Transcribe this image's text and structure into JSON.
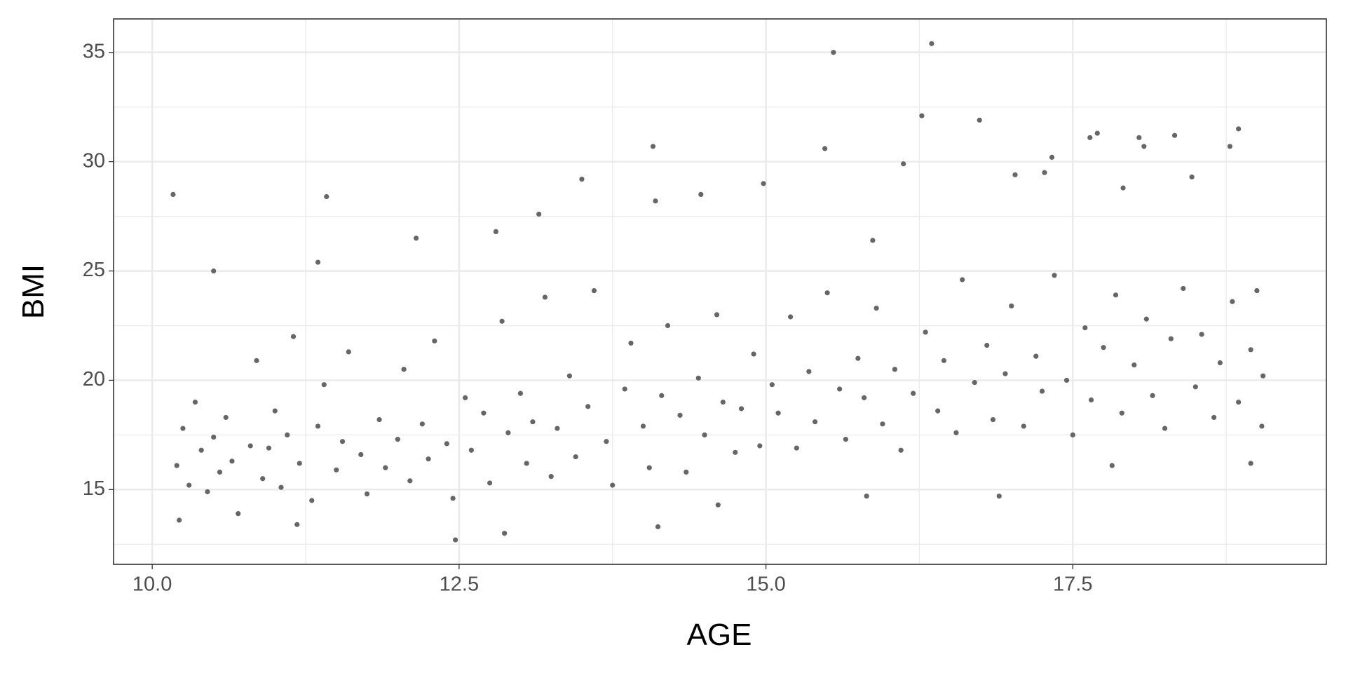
{
  "chart_data": {
    "type": "scatter",
    "x_label": "AGE",
    "y_label": "BMI",
    "xlim": [
      9.685,
      19.566
    ],
    "ylim": [
      11.58,
      36.53
    ],
    "xticks": [
      {
        "value": 10,
        "label": "10.0"
      },
      12.5,
      {
        "value": 15,
        "label": "15.0"
      },
      17.5
    ],
    "yticks": [
      15,
      20,
      25,
      30,
      35
    ],
    "x_minor_grid": [
      11.25,
      13.75,
      16.25,
      18.75
    ],
    "y_minor_grid": [
      12.5,
      17.5,
      22.5,
      27.5,
      32.5
    ],
    "grid": true,
    "color": "#666666",
    "x": [
      10.17,
      11.42,
      12.47,
      12.87,
      13.5,
      14.08,
      15.55,
      15.48,
      16.35,
      16.27,
      16.74,
      16.12,
      14.98,
      17.7,
      17.64,
      18.04,
      18.08,
      18.33,
      18.85,
      18.78,
      17.33,
      15.82,
      16.9,
      14.12,
      18.95,
      17.82,
      10.5,
      11.35,
      12.15,
      12.8,
      13.15,
      14.47,
      14.1,
      15.87,
      17.03,
      17.27,
      18.47,
      17.91,
      14.61,
      10.22,
      11.18,
      10.2,
      10.25,
      10.3,
      10.35,
      10.4,
      10.45,
      10.5,
      10.55,
      10.6,
      10.65,
      10.7,
      10.8,
      10.85,
      10.9,
      10.95,
      11.0,
      11.05,
      11.1,
      11.15,
      11.2,
      11.3,
      11.35,
      11.4,
      11.5,
      11.55,
      11.6,
      11.7,
      11.75,
      11.85,
      11.9,
      12.0,
      12.05,
      12.1,
      12.2,
      12.25,
      12.3,
      12.4,
      12.45,
      12.55,
      12.6,
      12.7,
      12.75,
      12.85,
      12.9,
      13.0,
      13.05,
      13.1,
      13.2,
      13.25,
      13.3,
      13.4,
      13.45,
      13.55,
      13.6,
      13.7,
      13.75,
      13.85,
      13.9,
      14.0,
      14.05,
      14.15,
      14.2,
      14.3,
      14.35,
      14.45,
      14.5,
      14.6,
      14.65,
      14.75,
      14.8,
      14.9,
      14.95,
      15.05,
      15.1,
      15.2,
      15.25,
      15.35,
      15.4,
      15.5,
      15.6,
      15.65,
      15.75,
      15.8,
      15.9,
      15.95,
      16.05,
      16.1,
      16.2,
      16.3,
      16.4,
      16.45,
      16.55,
      16.6,
      16.7,
      16.8,
      16.85,
      16.95,
      17.0,
      17.1,
      17.2,
      17.25,
      17.35,
      17.45,
      17.5,
      17.6,
      17.65,
      17.75,
      17.85,
      17.9,
      18.0,
      18.1,
      18.15,
      18.25,
      18.3,
      18.4,
      18.5,
      18.55,
      18.65,
      18.7,
      18.8,
      18.85,
      18.95,
      19.0,
      19.05,
      19.04
    ],
    "y": [
      28.5,
      28.4,
      12.7,
      13.0,
      29.2,
      30.7,
      35.0,
      30.6,
      35.4,
      32.1,
      31.9,
      29.9,
      29.0,
      31.3,
      31.1,
      31.1,
      30.7,
      31.2,
      31.5,
      30.7,
      30.2,
      14.7,
      14.7,
      13.3,
      16.2,
      16.1,
      25.0,
      25.4,
      26.5,
      26.8,
      27.6,
      28.5,
      28.2,
      26.4,
      29.4,
      29.5,
      29.3,
      28.8,
      14.3,
      13.6,
      13.4,
      16.1,
      17.8,
      15.2,
      19.0,
      16.8,
      14.9,
      17.4,
      15.8,
      18.3,
      16.3,
      13.9,
      17.0,
      20.9,
      15.5,
      16.9,
      18.6,
      15.1,
      17.5,
      22.0,
      16.2,
      14.5,
      17.9,
      19.8,
      15.9,
      17.2,
      21.3,
      16.6,
      14.8,
      18.2,
      16.0,
      17.3,
      20.5,
      15.4,
      18.0,
      16.4,
      21.8,
      17.1,
      14.6,
      19.2,
      16.8,
      18.5,
      15.3,
      22.7,
      17.6,
      19.4,
      16.2,
      18.1,
      23.8,
      15.6,
      17.8,
      20.2,
      16.5,
      18.8,
      24.1,
      17.2,
      15.2,
      19.6,
      21.7,
      17.9,
      16.0,
      19.3,
      22.5,
      18.4,
      15.8,
      20.1,
      17.5,
      23.0,
      19.0,
      16.7,
      18.7,
      21.2,
      17.0,
      19.8,
      18.5,
      22.9,
      16.9,
      20.4,
      18.1,
      24.0,
      19.6,
      17.3,
      21.0,
      19.2,
      23.3,
      18.0,
      20.5,
      16.8,
      19.4,
      22.2,
      18.6,
      20.9,
      17.6,
      24.6,
      19.9,
      21.6,
      18.2,
      20.3,
      23.4,
      17.9,
      21.1,
      19.5,
      24.8,
      20.0,
      17.5,
      22.4,
      19.1,
      21.5,
      23.9,
      18.5,
      20.7,
      22.8,
      19.3,
      17.8,
      21.9,
      24.2,
      19.7,
      22.1,
      18.3,
      20.8,
      23.6,
      19.0,
      21.4,
      24.1,
      20.2,
      17.9
    ]
  }
}
